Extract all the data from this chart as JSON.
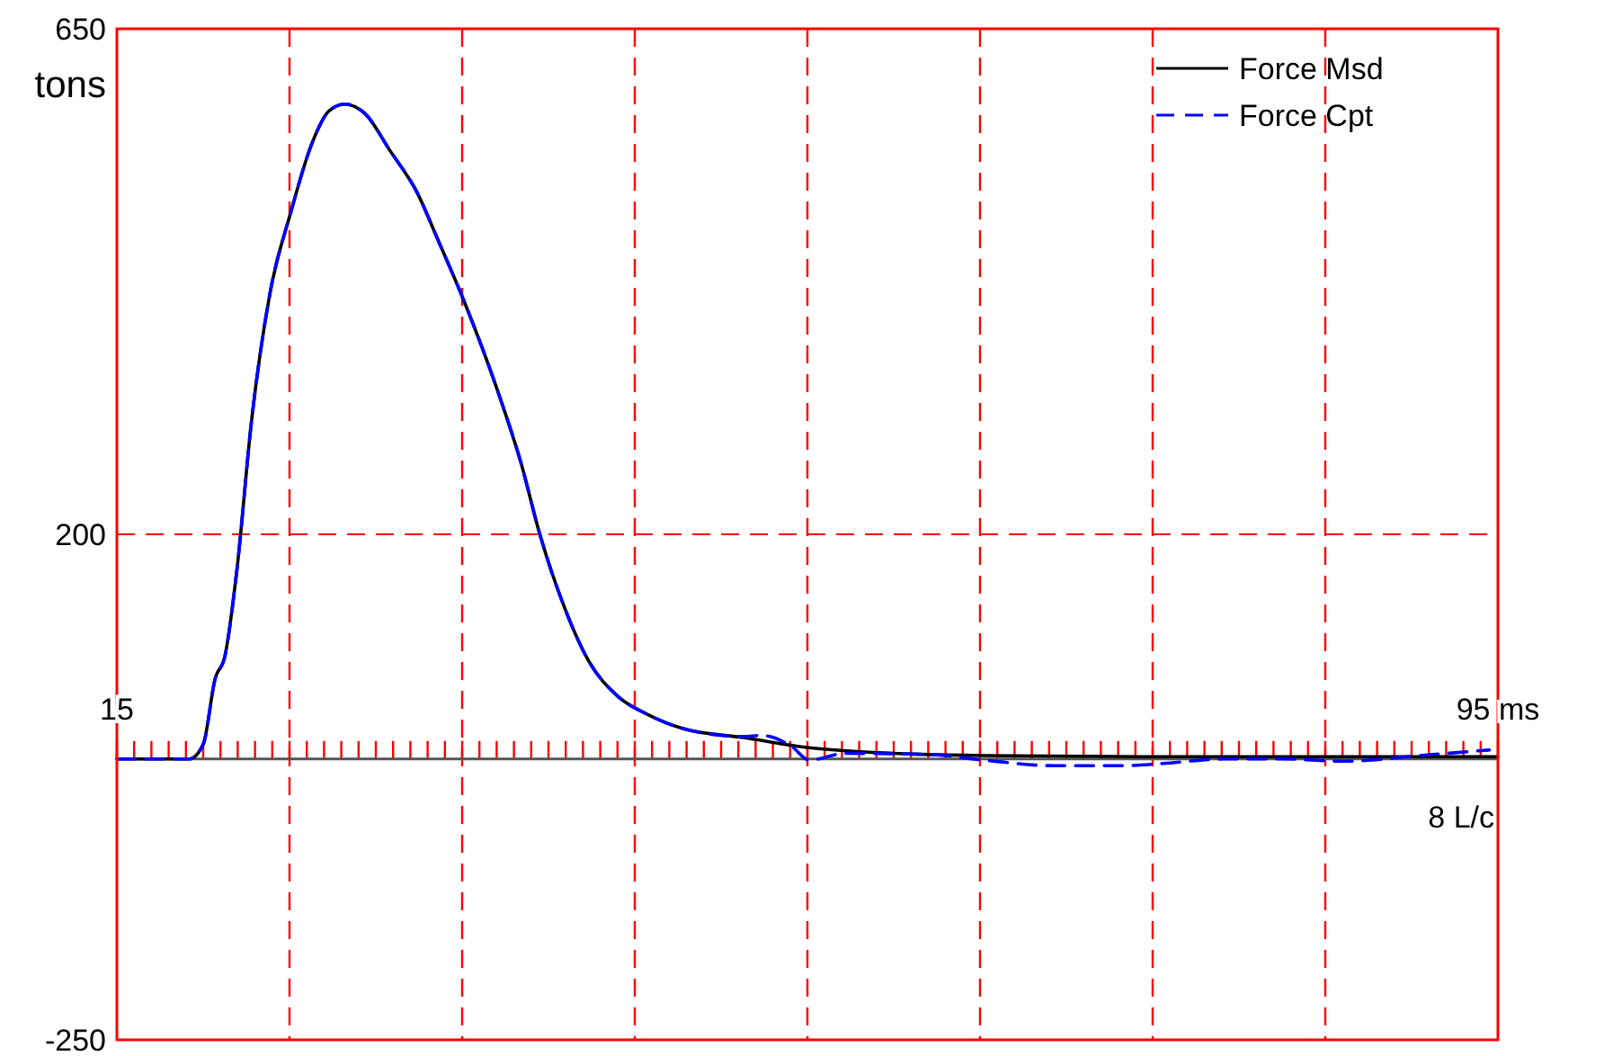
{
  "chart_data": {
    "type": "line",
    "ylabel": "tons",
    "annotations": [
      "8 L/c"
    ],
    "xlim": [
      15,
      95
    ],
    "ylim": [
      -250,
      650
    ],
    "yticks": [
      -250,
      200,
      650
    ],
    "xticks": [
      {
        "value": 15,
        "label": "15"
      },
      {
        "value": 16,
        "label": null
      },
      {
        "value": 17,
        "label": null
      },
      {
        "value": 18,
        "label": null
      },
      {
        "value": 19,
        "label": null
      },
      {
        "value": 20,
        "label": null
      },
      {
        "value": 21,
        "label": null
      },
      {
        "value": 22,
        "label": null
      },
      {
        "value": 23,
        "label": null
      },
      {
        "value": 24,
        "label": null
      },
      {
        "value": 25,
        "label": null
      },
      {
        "value": 26,
        "label": null
      },
      {
        "value": 27,
        "label": null
      },
      {
        "value": 28,
        "label": null
      },
      {
        "value": 29,
        "label": null
      },
      {
        "value": 30,
        "label": null
      },
      {
        "value": 31,
        "label": null
      },
      {
        "value": 32,
        "label": null
      },
      {
        "value": 33,
        "label": null
      },
      {
        "value": 34,
        "label": null
      },
      {
        "value": 35,
        "label": null
      },
      {
        "value": 36,
        "label": null
      },
      {
        "value": 37,
        "label": null
      },
      {
        "value": 38,
        "label": null
      },
      {
        "value": 39,
        "label": null
      },
      {
        "value": 40,
        "label": null
      },
      {
        "value": 41,
        "label": null
      },
      {
        "value": 42,
        "label": null
      },
      {
        "value": 43,
        "label": null
      },
      {
        "value": 44,
        "label": null
      },
      {
        "value": 45,
        "label": null
      },
      {
        "value": 46,
        "label": null
      },
      {
        "value": 47,
        "label": null
      },
      {
        "value": 48,
        "label": null
      },
      {
        "value": 49,
        "label": null
      },
      {
        "value": 50,
        "label": null
      },
      {
        "value": 51,
        "label": null
      },
      {
        "value": 52,
        "label": null
      },
      {
        "value": 53,
        "label": null
      },
      {
        "value": 54,
        "label": null
      },
      {
        "value": 55,
        "label": null
      },
      {
        "value": 56,
        "label": null
      },
      {
        "value": 57,
        "label": null
      },
      {
        "value": 58,
        "label": null
      },
      {
        "value": 59,
        "label": null
      },
      {
        "value": 60,
        "label": null
      },
      {
        "value": 61,
        "label": null
      },
      {
        "value": 62,
        "label": null
      },
      {
        "value": 63,
        "label": null
      },
      {
        "value": 64,
        "label": null
      },
      {
        "value": 65,
        "label": null
      },
      {
        "value": 66,
        "label": null
      },
      {
        "value": 67,
        "label": null
      },
      {
        "value": 68,
        "label": null
      },
      {
        "value": 69,
        "label": null
      },
      {
        "value": 70,
        "label": null
      },
      {
        "value": 71,
        "label": null
      },
      {
        "value": 72,
        "label": null
      },
      {
        "value": 73,
        "label": null
      },
      {
        "value": 74,
        "label": null
      },
      {
        "value": 75,
        "label": null
      },
      {
        "value": 76,
        "label": null
      },
      {
        "value": 77,
        "label": null
      },
      {
        "value": 78,
        "label": null
      },
      {
        "value": 79,
        "label": null
      },
      {
        "value": 80,
        "label": null
      },
      {
        "value": 81,
        "label": null
      },
      {
        "value": 82,
        "label": null
      },
      {
        "value": 83,
        "label": null
      },
      {
        "value": 84,
        "label": null
      },
      {
        "value": 85,
        "label": null
      },
      {
        "value": 86,
        "label": null
      },
      {
        "value": 87,
        "label": null
      },
      {
        "value": 88,
        "label": null
      },
      {
        "value": 89,
        "label": null
      },
      {
        "value": 90,
        "label": null
      },
      {
        "value": 91,
        "label": null
      },
      {
        "value": 92,
        "label": null
      },
      {
        "value": 93,
        "label": null
      },
      {
        "value": 94,
        "label": null
      },
      {
        "value": 95,
        "label": "95 ms"
      }
    ],
    "legend": "top right",
    "ref_lines": [
      {
        "axis": "x",
        "value": 25,
        "color": "#ff0000",
        "line_style": "dashed"
      },
      {
        "axis": "x",
        "value": 35,
        "color": "#ff0000",
        "line_style": "dashed"
      },
      {
        "axis": "x",
        "value": 45,
        "color": "#ff0000",
        "line_style": "dashed"
      },
      {
        "axis": "x",
        "value": 55,
        "color": "#ff0000",
        "line_style": "dashed"
      },
      {
        "axis": "x",
        "value": 65,
        "color": "#ff0000",
        "line_style": "dashed"
      },
      {
        "axis": "x",
        "value": 75,
        "color": "#ff0000",
        "line_style": "dashed"
      },
      {
        "axis": "x",
        "value": 85,
        "color": "#ff0000",
        "line_style": "dashed"
      },
      {
        "axis": "y",
        "value": 200,
        "color": "#ff0000",
        "line_style": "dashed"
      }
    ],
    "series": [
      {
        "name": "Force Msd",
        "color": "#000000",
        "line_style": "solid",
        "x": [
          15,
          19.2,
          20,
          20.7,
          21.25,
          21.95,
          22.8,
          23.85,
          25.1,
          26.3,
          27.3,
          28.2,
          29.4,
          30.8,
          32.4,
          33.6,
          35.1,
          37.05,
          38.4,
          39.5,
          40.9,
          42.3,
          44,
          45.7,
          47.8,
          51.3,
          55.1,
          60,
          65.2,
          75,
          85,
          95
        ],
        "values": [
          0,
          0,
          13,
          72,
          91,
          168,
          301,
          413,
          488,
          548,
          577,
          583,
          574,
          542,
          504,
          462,
          408,
          328,
          264,
          200,
          136,
          88,
          56,
          40,
          27,
          19,
          10,
          5,
          3,
          2,
          2,
          2
        ]
      },
      {
        "name": "Force Cpt",
        "color": "#0000ff",
        "line_style": "dashed",
        "x": [
          15,
          19.2,
          20,
          20.7,
          21.25,
          21.95,
          22.8,
          23.85,
          25.1,
          26.3,
          27.3,
          28.2,
          29.4,
          30.8,
          32.4,
          33.6,
          35.1,
          37.05,
          38.4,
          39.5,
          40.9,
          42.3,
          44,
          45.7,
          47.8,
          51.3,
          52.3,
          54.1,
          55.1,
          57.2,
          62.05,
          65.2,
          69.3,
          73.2,
          75.6,
          79.1,
          82.5,
          86,
          91.2,
          94.5
        ],
        "values": [
          0,
          0,
          13,
          72,
          91,
          168,
          301,
          413,
          488,
          548,
          577,
          583,
          574,
          542,
          504,
          462,
          408,
          328,
          264,
          200,
          136,
          88,
          56,
          40,
          27,
          20,
          21,
          11,
          -1,
          5,
          4,
          -1,
          -6,
          -6,
          -4,
          0,
          0,
          -2,
          4,
          8
        ]
      }
    ]
  }
}
